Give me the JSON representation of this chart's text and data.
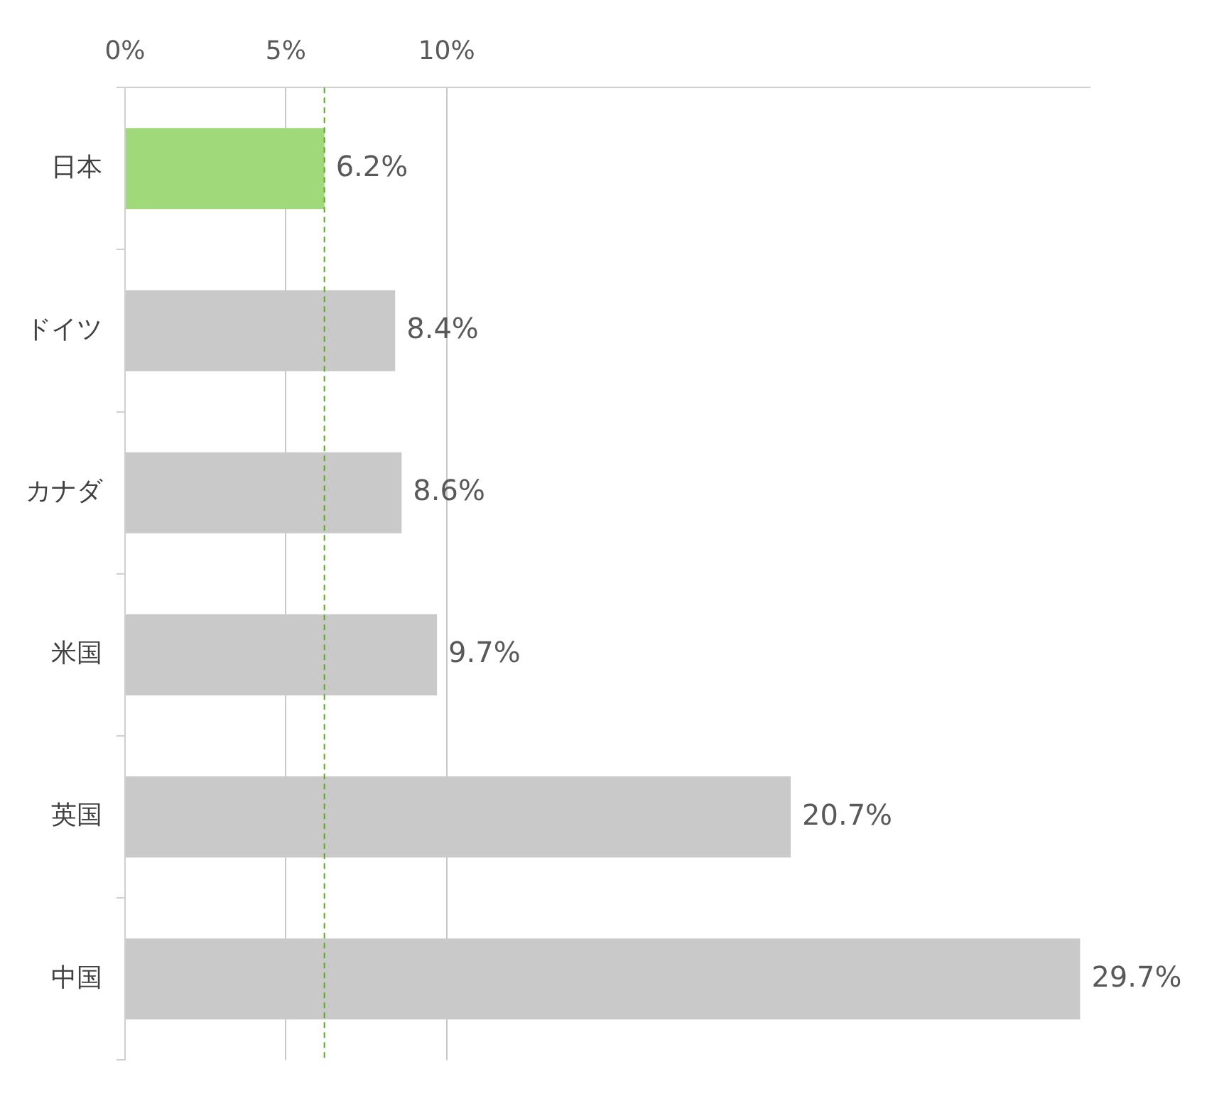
{
  "chart_data": {
    "type": "bar",
    "orientation": "horizontal",
    "categories": [
      "日本",
      "ドイツ",
      "カナダ",
      "米国",
      "英国",
      "中国"
    ],
    "values": [
      6.2,
      8.4,
      8.6,
      9.7,
      20.7,
      29.7
    ],
    "colors": [
      "#a0d97a",
      "#c9c9c9",
      "#c9c9c9",
      "#c9c9c9",
      "#c9c9c9",
      "#c9c9c9"
    ],
    "value_labels": [
      "6.2%",
      "8.4%",
      "8.6%",
      "9.7%",
      "20.7%",
      "29.7%"
    ],
    "xticks": [
      {
        "value": 0,
        "label": "0%"
      },
      {
        "value": 5,
        "label": "5%"
      },
      {
        "value": 10,
        "label": "10%"
      }
    ],
    "xlim": [
      0,
      30
    ],
    "grid": "x",
    "ref_lines": [
      {
        "axis": "x",
        "value": 6.2,
        "color": "#5aaa1e",
        "line_style": "dashed"
      }
    ]
  }
}
